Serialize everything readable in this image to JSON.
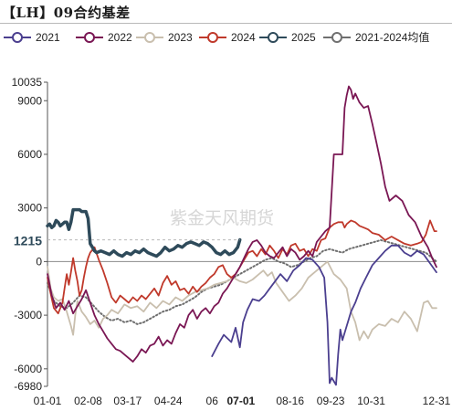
{
  "title": "【LH】09合约基差",
  "chart_data": {
    "type": "line",
    "title": "【LH】09合约基差",
    "xlabel": "",
    "ylabel": "",
    "ylim": [
      -6980,
      10035
    ],
    "y_ticks": [
      10035,
      9000,
      6000,
      3000,
      0,
      -3000,
      -6000,
      -6980
    ],
    "x_ticks": [
      "01-01",
      "02-08",
      "03-17",
      "04-24",
      "06",
      "07-01",
      "08-16",
      "09-23",
      "10-31",
      "12-31"
    ],
    "x_tick_days": [
      0,
      38,
      75,
      113,
      154,
      181,
      227,
      265,
      303,
      364
    ],
    "current_label": "1215",
    "watermark": "紫金天风期货",
    "legend_position": "top",
    "colors": {
      "2021": "#4b3f8f",
      "2022": "#7a1754",
      "2023": "#c9bfae",
      "2024": "#c0392b",
      "2025": "#2e4a5a",
      "avg": "#6f6f6f",
      "zero_line": "#8a8a8a"
    },
    "series": [
      {
        "name": "2021",
        "x": [
          154,
          160,
          165,
          172,
          176,
          180,
          183,
          187,
          192,
          198,
          203,
          208,
          213,
          218,
          224,
          230,
          236,
          242,
          248,
          254,
          259,
          262,
          264,
          266,
          270,
          272,
          274,
          276,
          280,
          284,
          288,
          293,
          298,
          304,
          310,
          316,
          322,
          328,
          334,
          340,
          346,
          352,
          358,
          364
        ],
        "y": [
          -5300,
          -4600,
          -4100,
          -4500,
          -3700,
          -4800,
          -3400,
          -2700,
          -2100,
          -2200,
          -1900,
          -1500,
          -1100,
          -700,
          -1100,
          -500,
          -200,
          200,
          100,
          -300,
          -900,
          -3400,
          -6800,
          -6500,
          -6900,
          -5200,
          -3800,
          -4400,
          -3600,
          -2800,
          -2300,
          -1500,
          -900,
          -200,
          200,
          600,
          900,
          900,
          500,
          300,
          600,
          400,
          -100,
          -600
        ]
      },
      {
        "name": "2022",
        "x": [
          0,
          4,
          8,
          12,
          16,
          20,
          24,
          28,
          32,
          36,
          40,
          44,
          48,
          52,
          56,
          60,
          64,
          68,
          72,
          76,
          80,
          84,
          88,
          92,
          96,
          100,
          104,
          108,
          112,
          116,
          120,
          124,
          128,
          132,
          136,
          140,
          144,
          148,
          152,
          156,
          160,
          164,
          168,
          172,
          176,
          180,
          184,
          188,
          192,
          196,
          200,
          204,
          208,
          212,
          216,
          220,
          224,
          228,
          232,
          236,
          240,
          244,
          248,
          252,
          256,
          260,
          264,
          268,
          272,
          276,
          278,
          280,
          282,
          284,
          286,
          288,
          292,
          296,
          300,
          304,
          308,
          312,
          316,
          320,
          326,
          332,
          338,
          344,
          350,
          356,
          360,
          364
        ],
        "y": [
          -700,
          -1900,
          -2600,
          -2300,
          -2700,
          -2200,
          -2900,
          -2500,
          -2100,
          -1600,
          -2300,
          -3000,
          -3500,
          -3900,
          -4300,
          -4600,
          -4900,
          -5000,
          -5200,
          -5400,
          -5600,
          -5300,
          -4900,
          -5100,
          -4700,
          -4600,
          -4200,
          -4700,
          -4400,
          -4600,
          -4000,
          -3500,
          -3700,
          -3000,
          -2700,
          -3200,
          -2800,
          -2600,
          -2900,
          -2500,
          -2300,
          -1800,
          -1500,
          -1100,
          -700,
          -300,
          200,
          700,
          1100,
          1200,
          900,
          500,
          300,
          200,
          500,
          800,
          300,
          700,
          500,
          100,
          300,
          600,
          300,
          1100,
          1400,
          1700,
          1900,
          6000,
          6000,
          6000,
          8600,
          9300,
          9800,
          9600,
          9100,
          9400,
          8900,
          8600,
          8700,
          7700,
          6600,
          5500,
          4200,
          3400,
          3700,
          3400,
          2600,
          2200,
          1400,
          800,
          200,
          -300
        ]
      },
      {
        "name": "2023",
        "x": [
          0,
          3,
          6,
          10,
          14,
          18,
          22,
          24,
          26,
          28,
          32,
          36,
          40,
          44,
          48,
          52,
          56,
          60,
          66,
          72,
          78,
          84,
          90,
          96,
          102,
          108,
          114,
          120,
          126,
          132,
          138,
          144,
          150,
          156,
          162,
          168,
          174,
          180,
          186,
          192,
          198,
          202,
          206,
          210,
          214,
          220,
          226,
          232,
          238,
          244,
          250,
          256,
          262,
          268,
          274,
          280,
          284,
          288,
          292,
          296,
          300,
          304,
          310,
          316,
          322,
          328,
          334,
          340,
          346,
          352,
          356,
          360,
          364
        ],
        "y": [
          -300,
          -1500,
          -2000,
          -2200,
          -2100,
          -2800,
          -3600,
          -4100,
          -3000,
          -2200,
          -2800,
          -3100,
          -3500,
          -3300,
          -3700,
          -3200,
          -3000,
          -2700,
          -2900,
          -2400,
          -2600,
          -2500,
          -2800,
          -2300,
          -2600,
          -2200,
          -2400,
          -2000,
          -2200,
          -1900,
          -1700,
          -1600,
          -1500,
          -1300,
          -1200,
          -1100,
          -900,
          -1100,
          -1200,
          -1000,
          -700,
          -500,
          -800,
          -600,
          -1200,
          -1700,
          -2200,
          -1900,
          -1500,
          -900,
          -600,
          -300,
          0,
          -700,
          -1000,
          -1500,
          -2800,
          -3400,
          -4400,
          -3900,
          -4300,
          -3800,
          -3500,
          -3600,
          -3200,
          -3400,
          -2800,
          -3200,
          -3900,
          -2300,
          -2200,
          -2600,
          -2600
        ]
      },
      {
        "name": "2024",
        "x": [
          0,
          3,
          6,
          10,
          14,
          16,
          18,
          20,
          22,
          24,
          26,
          28,
          30,
          32,
          34,
          36,
          38,
          40,
          44,
          48,
          52,
          56,
          60,
          64,
          68,
          72,
          76,
          80,
          84,
          88,
          92,
          96,
          100,
          104,
          108,
          112,
          116,
          120,
          124,
          128,
          132,
          136,
          140,
          144,
          148,
          152,
          156,
          160,
          164,
          168,
          172,
          176,
          180,
          184,
          188,
          192,
          196,
          200,
          204,
          208,
          212,
          216,
          220,
          224,
          228,
          232,
          236,
          240,
          244,
          248,
          252,
          256,
          260,
          264,
          268,
          272,
          276,
          278,
          280,
          284,
          288,
          292,
          296,
          300,
          304,
          310,
          316,
          322,
          328,
          334,
          340,
          346,
          350,
          354,
          358,
          362,
          364
        ],
        "y": [
          -900,
          -1800,
          -2600,
          -2900,
          -2300,
          -1500,
          -700,
          -1300,
          -600,
          200,
          -500,
          -1100,
          -1900,
          -1600,
          -900,
          -300,
          200,
          500,
          800,
          100,
          -500,
          -1200,
          -2000,
          -2300,
          -1900,
          -2100,
          -2300,
          -2000,
          -2200,
          -1900,
          -2100,
          -1800,
          -1500,
          -1900,
          -1200,
          -800,
          -1300,
          -1100,
          -1600,
          -1500,
          -1800,
          -1400,
          -1700,
          -1400,
          -1200,
          -900,
          -700,
          -300,
          -200,
          -700,
          -900,
          -700,
          -300,
          100,
          500,
          600,
          300,
          700,
          400,
          900,
          600,
          200,
          700,
          400,
          900,
          1000,
          600,
          700,
          300,
          700,
          600,
          1200,
          1300,
          1900,
          2100,
          2200,
          2200,
          1900,
          2100,
          2300,
          2200,
          2000,
          1900,
          1800,
          1600,
          1500,
          1200,
          1400,
          1200,
          1000,
          900,
          1000,
          1100,
          1500,
          2300,
          1700,
          1700
        ]
      },
      {
        "name": "2025",
        "x": [
          0,
          2,
          4,
          6,
          8,
          10,
          12,
          14,
          16,
          18,
          20,
          22,
          24,
          26,
          28,
          30,
          32,
          34,
          36,
          38,
          40,
          42,
          44,
          46,
          50,
          54,
          58,
          62,
          66,
          70,
          74,
          78,
          82,
          86,
          90,
          94,
          98,
          102,
          106,
          110,
          114,
          118,
          122,
          126,
          130,
          134,
          138,
          142,
          146,
          150,
          154,
          158,
          162,
          166,
          170,
          174,
          178,
          180
        ],
        "y": [
          2000,
          2100,
          1900,
          2000,
          2300,
          2200,
          2000,
          2100,
          2200,
          2200,
          1800,
          2200,
          2900,
          2900,
          2900,
          2900,
          2800,
          2800,
          2800,
          2400,
          1000,
          800,
          600,
          500,
          600,
          500,
          400,
          600,
          400,
          300,
          500,
          400,
          600,
          500,
          700,
          500,
          400,
          300,
          500,
          800,
          600,
          700,
          900,
          800,
          1000,
          1100,
          1000,
          900,
          1100,
          1000,
          800,
          500,
          400,
          600,
          400,
          500,
          800,
          1215
        ]
      },
      {
        "name": "2021-2024均值",
        "x": [
          0,
          6,
          12,
          18,
          24,
          30,
          36,
          42,
          48,
          54,
          60,
          66,
          72,
          78,
          84,
          90,
          96,
          102,
          108,
          114,
          120,
          126,
          132,
          138,
          144,
          150,
          156,
          162,
          168,
          174,
          180,
          186,
          192,
          198,
          204,
          210,
          216,
          222,
          228,
          234,
          240,
          246,
          252,
          258,
          264,
          270,
          276,
          282,
          288,
          294,
          300,
          306,
          312,
          318,
          324,
          330,
          336,
          342,
          348,
          354,
          360,
          364
        ],
        "y": [
          -1200,
          -2200,
          -2500,
          -2600,
          -2300,
          -1900,
          -2000,
          -2400,
          -2800,
          -3100,
          -3300,
          -3200,
          -3400,
          -3300,
          -3500,
          -3400,
          -3200,
          -3000,
          -2800,
          -2700,
          -2500,
          -2400,
          -2200,
          -2000,
          -1700,
          -1500,
          -1400,
          -1300,
          -1100,
          -900,
          -700,
          -500,
          -300,
          -100,
          100,
          200,
          0,
          -100,
          -300,
          -200,
          0,
          200,
          300,
          600,
          700,
          600,
          500,
          700,
          800,
          900,
          1000,
          1100,
          1200,
          1100,
          1000,
          900,
          800,
          700,
          600,
          500,
          200,
          0
        ]
      }
    ]
  }
}
